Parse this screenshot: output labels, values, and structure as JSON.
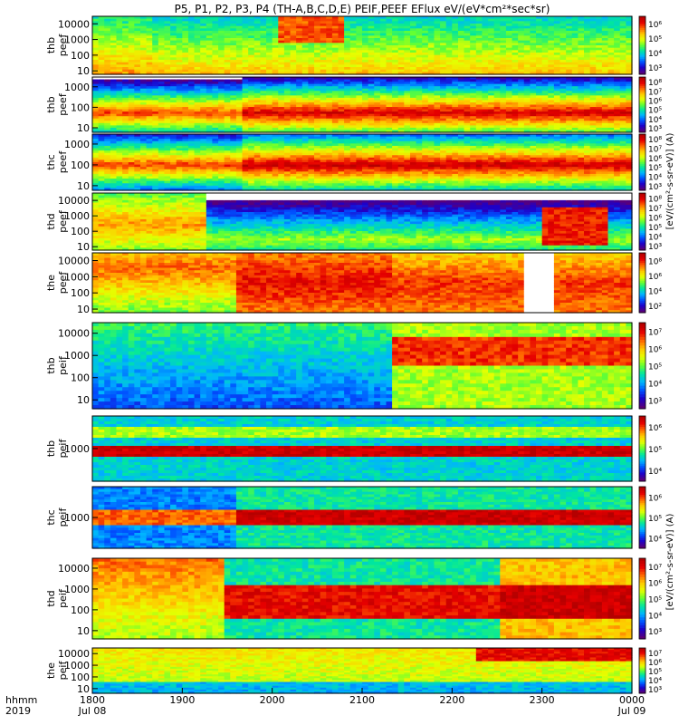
{
  "title": "P5, P1, P2, P3, P4 (TH-A,B,C,D,E) PEIF,PEEF EFlux eV/(eV*cm²*sec*sr)",
  "xaxis": {
    "header_left": "hhmm",
    "header_left2": "2019",
    "ticks": [
      {
        "label": "1800",
        "sub": "Jul 08",
        "t": 0
      },
      {
        "label": "1900",
        "sub": "",
        "t": 60
      },
      {
        "label": "2000",
        "sub": "",
        "t": 120
      },
      {
        "label": "2100",
        "sub": "",
        "t": 180
      },
      {
        "label": "2200",
        "sub": "",
        "t": 240
      },
      {
        "label": "2300",
        "sub": "",
        "t": 300
      },
      {
        "label": "0000",
        "sub": "Jul 09",
        "t": 360
      }
    ],
    "range_minutes": [
      0,
      360
    ]
  },
  "colors": {
    "scale": [
      "#5a0078",
      "#1e00c8",
      "#0050ff",
      "#00b4ff",
      "#00e6a0",
      "#64ff32",
      "#e6ff00",
      "#ffc800",
      "#ff6400",
      "#e60000",
      "#b40000"
    ]
  },
  "chart_data": [
    {
      "type": "heatmap",
      "probe": "thb",
      "product": "peef",
      "ylabel": "thb\npeef",
      "yscale": "log",
      "ylim": [
        6,
        30000
      ],
      "yticks": [
        "10",
        "100",
        "1000",
        "10000"
      ],
      "cbar_ticks": [
        "10⁶",
        "10⁵",
        "10⁴",
        "10³"
      ]
    },
    {
      "type": "heatmap",
      "probe": "thb",
      "product": "peef",
      "ylabel": "thb\npeef",
      "yscale": "log",
      "ylim": [
        6,
        3000
      ],
      "yticks": [
        "10",
        "100",
        "1000"
      ],
      "cbar_ticks": [
        "10⁸",
        "10⁷",
        "10⁶",
        "10⁵",
        "10⁴",
        "10³"
      ]
    },
    {
      "type": "heatmap",
      "probe": "thc",
      "product": "peef",
      "ylabel": "thc\npeef",
      "yscale": "log",
      "ylim": [
        6,
        3000
      ],
      "yticks": [
        "10",
        "100",
        "1000"
      ],
      "cbar_ticks": [
        "10⁸",
        "10⁷",
        "10⁶",
        "10⁵",
        "10⁴",
        "10³"
      ]
    },
    {
      "type": "heatmap",
      "probe": "thd",
      "product": "peef",
      "ylabel": "thd\npeef",
      "yscale": "log",
      "ylim": [
        6,
        30000
      ],
      "yticks": [
        "10",
        "100",
        "1000",
        "10000"
      ],
      "cbar_ticks": [
        "10⁸",
        "10⁷",
        "10⁶",
        "10⁵",
        "10⁴",
        "10³"
      ]
    },
    {
      "type": "heatmap",
      "probe": "the",
      "product": "peef",
      "ylabel": "the\npeef",
      "yscale": "log",
      "ylim": [
        6,
        30000
      ],
      "yticks": [
        "10",
        "100",
        "1000",
        "10000"
      ],
      "cbar_ticks": [
        "10⁸",
        "10⁶",
        "10⁴",
        "10²"
      ]
    },
    {
      "type": "heatmap",
      "probe": "thb",
      "product": "peif",
      "ylabel": "thb\npeif",
      "yscale": "log",
      "ylim": [
        4,
        30000
      ],
      "yticks": [
        "10",
        "100",
        "1000",
        "10000"
      ],
      "cbar_ticks": [
        "10⁷",
        "10⁶",
        "10⁵",
        "10⁴",
        "10³"
      ]
    },
    {
      "type": "heatmap",
      "probe": "thb",
      "product": "peif",
      "ylabel": "thb\npeif",
      "yscale": "log",
      "ylim": [
        100,
        10000
      ],
      "yticks": [
        "1000"
      ],
      "cbar_ticks": [
        "10⁶",
        "10⁵",
        "10⁴"
      ]
    },
    {
      "type": "heatmap",
      "probe": "thc",
      "product": "peif",
      "ylabel": "thc\npeif",
      "yscale": "log",
      "ylim": [
        100,
        10000
      ],
      "yticks": [
        "1000"
      ],
      "cbar_ticks": [
        "10⁶",
        "10⁵",
        "10⁴"
      ]
    },
    {
      "type": "heatmap",
      "probe": "thd",
      "product": "peif",
      "ylabel": "thd\npeif",
      "yscale": "log",
      "ylim": [
        4,
        30000
      ],
      "yticks": [
        "10",
        "100",
        "1000",
        "10000"
      ],
      "cbar_ticks": [
        "10⁷",
        "10⁶",
        "10⁵",
        "10⁴",
        "10³"
      ]
    },
    {
      "type": "heatmap",
      "probe": "the",
      "product": "peif",
      "ylabel": "the\npeif",
      "yscale": "log",
      "ylim": [
        4,
        30000
      ],
      "yticks": [
        "10",
        "100",
        "1000",
        "10000"
      ],
      "cbar_ticks": [
        "10⁷",
        "10⁶",
        "10⁵",
        "10⁴",
        "10³"
      ]
    }
  ],
  "cbar_label_peef": "[eV/(cm²-s-sr-eV)] (A)",
  "cbar_label_peif": "[eV/(cm²-s-sr-eV)] (A)"
}
